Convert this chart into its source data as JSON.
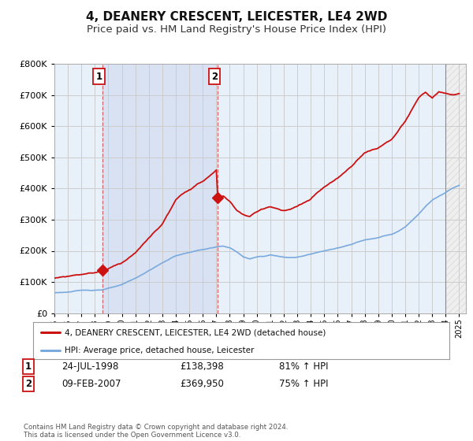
{
  "title": "4, DEANERY CRESCENT, LEICESTER, LE4 2WD",
  "subtitle": "Price paid vs. HM Land Registry's House Price Index (HPI)",
  "title_fontsize": 11,
  "subtitle_fontsize": 9.5,
  "hpi_color": "#7aaadd",
  "price_color": "#cc1111",
  "background_color": "#ffffff",
  "plot_bg_color": "#ddeeff",
  "plot_bg_alpha": 0.35,
  "grid_color": "#bbbbbb",
  "ylim": [
    0,
    800000
  ],
  "yticks": [
    0,
    100000,
    200000,
    300000,
    400000,
    500000,
    600000,
    700000,
    800000
  ],
  "xlim_start": 1995.0,
  "xlim_end": 2025.5,
  "sale1_year": 1998.56,
  "sale1_price": 138398,
  "sale2_year": 2007.11,
  "sale2_price": 369950,
  "hatch_start": 2024.0,
  "legend_line1": "4, DEANERY CRESCENT, LEICESTER, LE4 2WD (detached house)",
  "legend_line2": "HPI: Average price, detached house, Leicester",
  "annotation1_label": "1",
  "annotation1_date": "24-JUL-1998",
  "annotation1_price": "£138,398",
  "annotation1_hpi": "81% ↑ HPI",
  "annotation2_label": "2",
  "annotation2_date": "09-FEB-2007",
  "annotation2_price": "£369,950",
  "annotation2_hpi": "75% ↑ HPI",
  "footer": "Contains HM Land Registry data © Crown copyright and database right 2024.\nThis data is licensed under the Open Government Licence v3.0."
}
